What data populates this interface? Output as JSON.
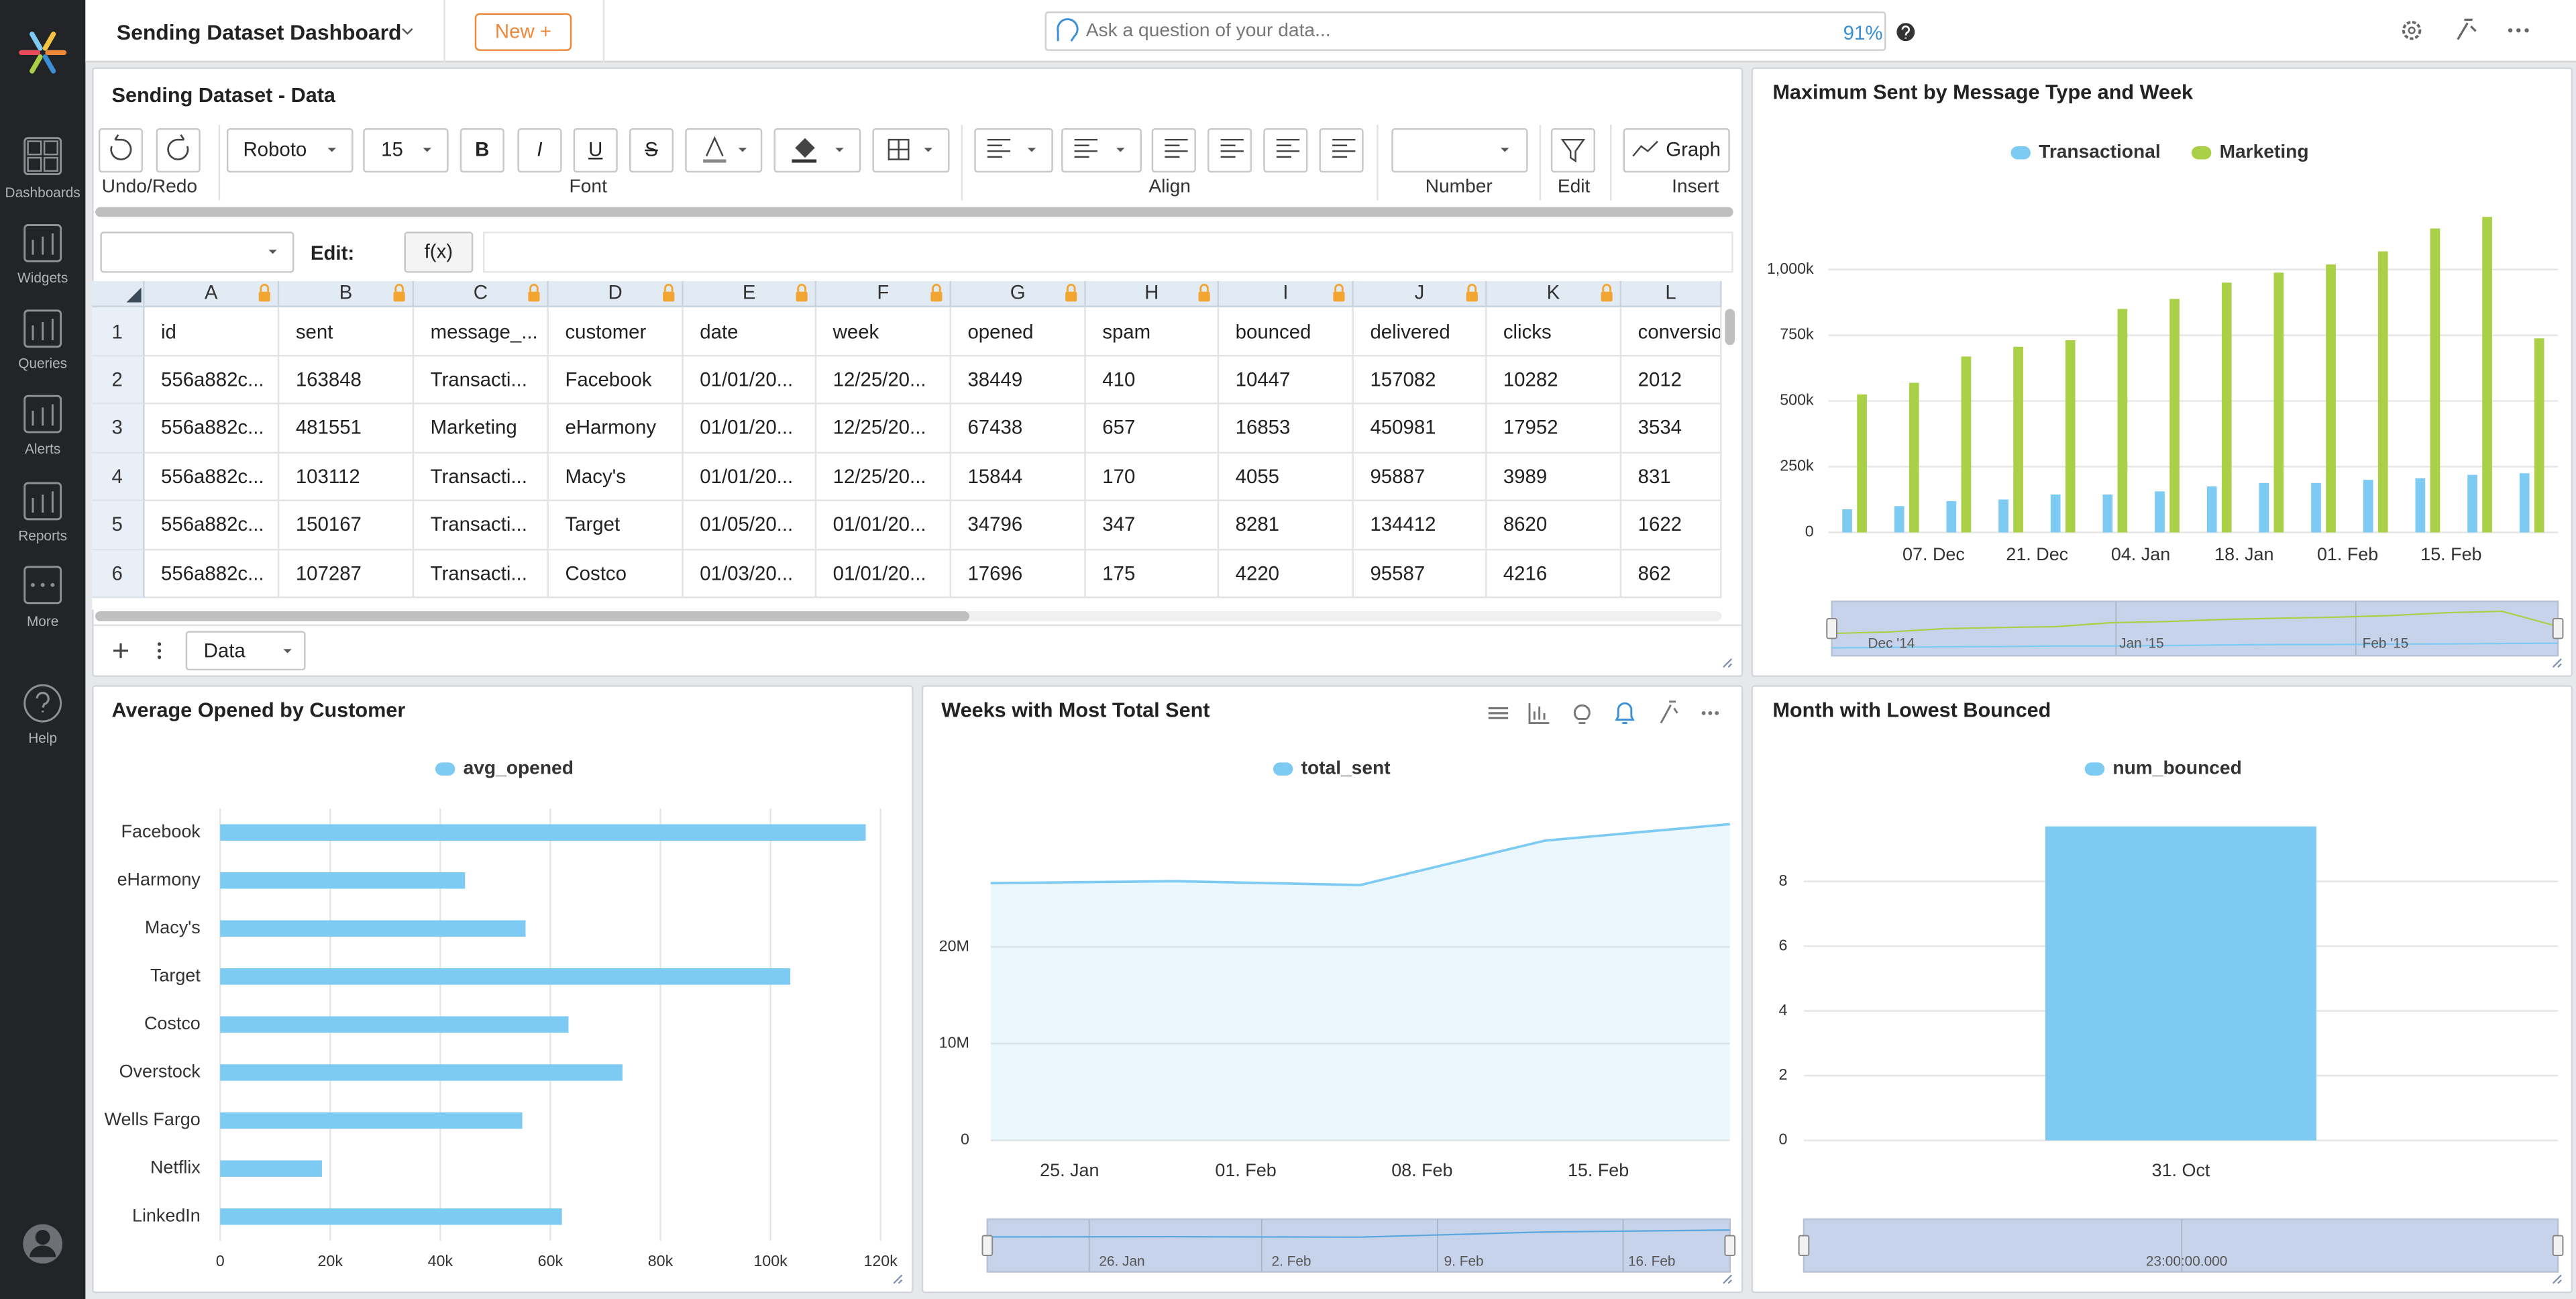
{
  "header": {
    "title": "Sending Dataset Dashboard",
    "new_button": "New +",
    "search_placeholder": "Ask a question of your data...",
    "zoom": "91%"
  },
  "sidebar": {
    "items": [
      "Dashboards",
      "Widgets",
      "Queries",
      "Alerts",
      "Reports",
      "More"
    ],
    "help": "Help"
  },
  "sheet": {
    "title": "Sending Dataset - Data",
    "toolbar": {
      "font": "Roboto",
      "font_size": "15",
      "styles": [
        "B",
        "I",
        "U",
        "S"
      ],
      "graph": "Graph",
      "groups": [
        "Undo/Redo",
        "Font",
        "Align",
        "Number",
        "Edit",
        "Insert"
      ]
    },
    "edit_label": "Edit:",
    "fx": "f(x)",
    "columns": [
      "A",
      "B",
      "C",
      "D",
      "E",
      "F",
      "G",
      "H",
      "I",
      "J",
      "K",
      "L"
    ],
    "row_numbers": [
      1,
      2,
      3,
      4,
      5,
      6
    ],
    "rows": [
      [
        "id",
        "sent",
        "message_...",
        "customer",
        "date",
        "week",
        "opened",
        "spam",
        "bounced",
        "delivered",
        "clicks",
        "conversio"
      ],
      [
        "556a882c...",
        "163848",
        "Transacti...",
        "Facebook",
        "01/01/20...",
        "12/25/20...",
        "38449",
        "410",
        "10447",
        "157082",
        "10282",
        "2012"
      ],
      [
        "556a882c...",
        "481551",
        "Marketing",
        "eHarmony",
        "01/01/20...",
        "12/25/20...",
        "67438",
        "657",
        "16853",
        "450981",
        "17952",
        "3534"
      ],
      [
        "556a882c...",
        "103112",
        "Transacti...",
        "Macy's",
        "01/01/20...",
        "12/25/20...",
        "15844",
        "170",
        "4055",
        "95887",
        "3989",
        "831"
      ],
      [
        "556a882c...",
        "150167",
        "Transacti...",
        "Target",
        "01/05/20...",
        "01/01/20...",
        "34796",
        "347",
        "8281",
        "134412",
        "8620",
        "1622"
      ],
      [
        "556a882c...",
        "107287",
        "Transacti...",
        "Costco",
        "01/03/20...",
        "01/01/20...",
        "17696",
        "175",
        "4220",
        "95587",
        "4216",
        "862"
      ]
    ],
    "tab": "Data"
  },
  "chart_data": [
    {
      "type": "bar",
      "title": "Maximum Sent by Message Type and Week",
      "series": [
        {
          "name": "Transactional",
          "color": "#7dcbf2",
          "values": [
            88000,
            100000,
            119000,
            125000,
            144000,
            144000,
            156000,
            175000,
            188000,
            188000,
            200000,
            206000,
            219000,
            225000
          ]
        },
        {
          "name": "Marketing",
          "color": "#a9d046",
          "values": [
            525000,
            569000,
            669000,
            706000,
            731000,
            850000,
            888000,
            950000,
            988000,
            1019000,
            1069000,
            1156000,
            1200000,
            738000
          ]
        }
      ],
      "xtick_labels": [
        "07. Dec",
        "21. Dec",
        "04. Jan",
        "18. Jan",
        "01. Feb",
        "15. Feb"
      ],
      "ylim": [
        0,
        1250000
      ],
      "yticks": [
        0,
        {
          "value": 250000,
          "label": "250k"
        },
        {
          "value": 500000,
          "label": "500k"
        },
        {
          "value": 750000,
          "label": "750k"
        },
        {
          "value": 1000000,
          "label": "1,000k"
        }
      ],
      "grid": true,
      "legend": "top",
      "navigator": [
        "Dec '14",
        "Jan '15",
        "Feb '15"
      ]
    },
    {
      "type": "hbar",
      "title": "Average Opened by Customer",
      "categories": [
        "Facebook",
        "eHarmony",
        "Macy's",
        "Target",
        "Costco",
        "Overstock",
        "Wells Fargo",
        "Netflix",
        "LinkedIn"
      ],
      "series": [
        {
          "name": "avg_opened",
          "color": "#7dcbf2",
          "values": [
            117300,
            44500,
            55500,
            103600,
            63300,
            73100,
            54900,
            18500,
            62100
          ]
        }
      ],
      "xlim": [
        0,
        120000
      ],
      "xticks": [
        0,
        {
          "value": 20000,
          "label": "20k"
        },
        {
          "value": 40000,
          "label": "40k"
        },
        {
          "value": 60000,
          "label": "60k"
        },
        {
          "value": 80000,
          "label": "80k"
        },
        {
          "value": 100000,
          "label": "100k"
        },
        {
          "value": 120000,
          "label": "120k"
        }
      ],
      "grid": true,
      "legend": "top"
    },
    {
      "type": "area",
      "title": "Weeks with Most Total Sent",
      "series": [
        {
          "name": "total_sent",
          "color": "#7dcbf2",
          "values": [
            26600000,
            26800000,
            26400000,
            31000000,
            32700000
          ]
        }
      ],
      "xtick_labels": [
        "25. Jan",
        "01. Feb",
        "08. Feb",
        "15. Feb"
      ],
      "ylim": [
        0,
        35000000
      ],
      "yticks": [
        0,
        {
          "value": 10000000,
          "label": "10M"
        },
        {
          "value": 20000000,
          "label": "20M"
        }
      ],
      "grid": true,
      "legend": "top",
      "navigator": [
        "26. Jan",
        "2. Feb",
        "9. Feb",
        "16. Feb"
      ]
    },
    {
      "type": "bar",
      "title": "Month with Lowest Bounced",
      "categories": [
        "31. Oct"
      ],
      "series": [
        {
          "name": "num_bounced",
          "color": "#7dcbf2",
          "values": [
            9.7
          ]
        }
      ],
      "ylim": [
        0,
        10
      ],
      "yticks": [
        0,
        2,
        4,
        6,
        8
      ],
      "grid": true,
      "legend": "top",
      "navigator": [
        "23:00:00.000"
      ]
    }
  ]
}
